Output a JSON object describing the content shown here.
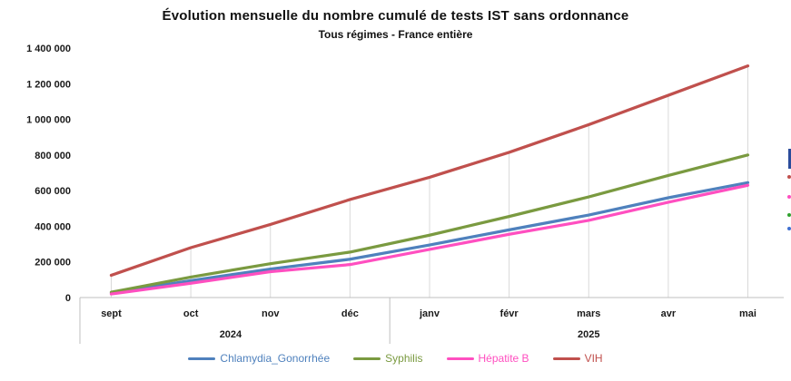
{
  "title": "Évolution mensuelle du nombre cumulé de tests IST sans ordonnance",
  "subtitle": "Tous régimes - France entière",
  "chart_data": {
    "type": "line",
    "x": [
      "sept",
      "oct",
      "nov",
      "déc",
      "janv",
      "févr",
      "mars",
      "avr",
      "mai"
    ],
    "x_groups": [
      {
        "label": "2024",
        "span": [
          0,
          3
        ]
      },
      {
        "label": "2025",
        "span": [
          4,
          8
        ]
      }
    ],
    "ylim": [
      0,
      1400000
    ],
    "ytick_step": 200000,
    "ytick_labels": [
      "0",
      "200 000",
      "400 000",
      "600 000",
      "800 000",
      "1 000 000",
      "1 200 000",
      "1 400 000"
    ],
    "grid": "vertical drop-lines from top series down to x-axis at each month; no horizontal gridlines",
    "legend_position": "bottom",
    "series": [
      {
        "name": "Chlamydia_Gonorrhée",
        "color": "#4F81BD",
        "values": [
          25000,
          95000,
          160000,
          215000,
          295000,
          380000,
          463000,
          560000,
          645000
        ]
      },
      {
        "name": "Syphilis",
        "color": "#7A9A40",
        "values": [
          30000,
          115000,
          190000,
          255000,
          350000,
          455000,
          565000,
          685000,
          800000
        ]
      },
      {
        "name": "Hépatite B",
        "color": "#FF4FC0",
        "values": [
          20000,
          80000,
          145000,
          185000,
          270000,
          355000,
          433000,
          535000,
          630000
        ]
      },
      {
        "name": "VIH",
        "color": "#C0504D",
        "values": [
          125000,
          280000,
          410000,
          550000,
          675000,
          815000,
          970000,
          1135000,
          1300000
        ]
      }
    ]
  },
  "right_edge_cropped_visual": {
    "bar_color": "#2B4C9B",
    "dot_colors": [
      "#C0504D",
      "#FF4FC0",
      "#2FA12E",
      "#3F6FD1"
    ]
  },
  "style": {
    "drop_line_color": "#D9D9D9",
    "axis_line_color": "#BFBFBF",
    "axis_text_color": "#1A1A1A"
  }
}
